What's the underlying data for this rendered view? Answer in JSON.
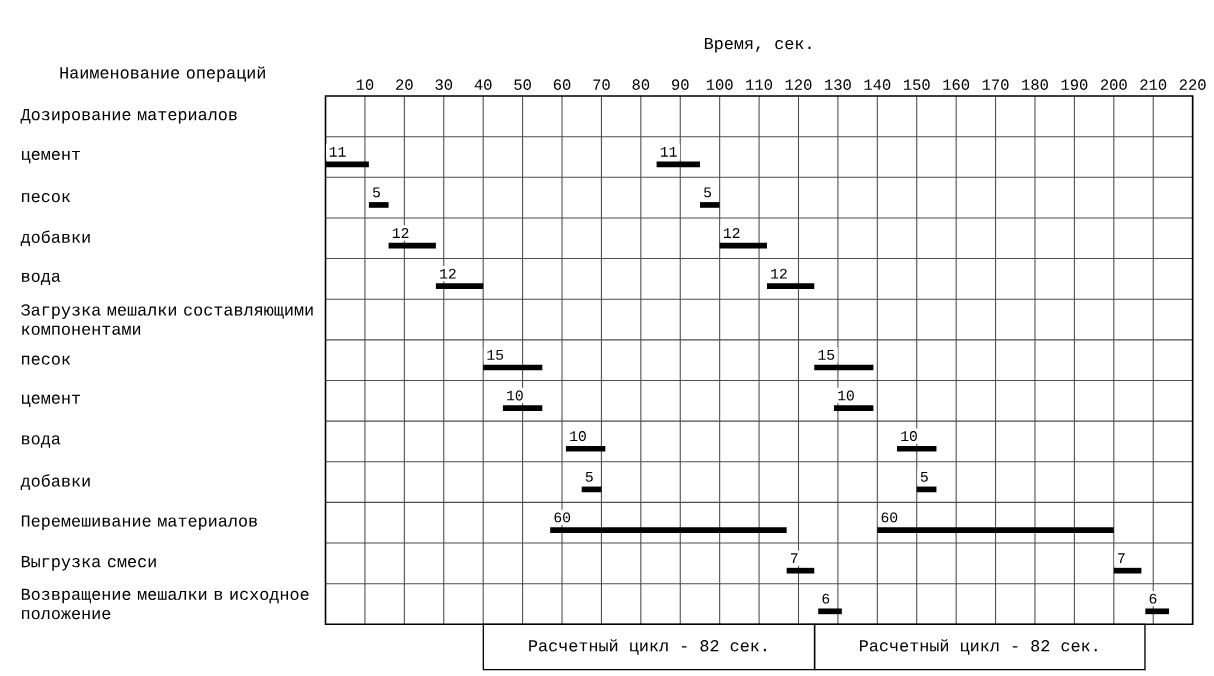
{
  "chart_data": {
    "type": "bar",
    "orientation": "horizontal",
    "xlabel": "Время, сек.",
    "ylabel": "Наименование операций",
    "categories": [
      "Дозирование материалов",
      "цемент",
      "песок",
      "добавки",
      "вода",
      "Загрузка мешалки составляющими компонентами",
      "песок",
      "цемент",
      "вода",
      "добавки",
      "Перемешивание материалов",
      "Выгрузка смеси",
      "Возвращение мешалки в исходное положение"
    ],
    "series": [
      {
        "color": "#000000",
        "values": [
          null,
          11,
          5,
          12,
          12,
          null,
          15,
          10,
          10,
          5,
          60,
          7,
          6
        ],
        "base": [
          null,
          0,
          11,
          16,
          28,
          null,
          40,
          45,
          61,
          65,
          57,
          117,
          125
        ]
      },
      {
        "color": "#000000",
        "values": [
          null,
          11,
          5,
          12,
          12,
          null,
          15,
          10,
          10,
          5,
          60,
          7,
          6
        ],
        "base": [
          null,
          84,
          95,
          100,
          112,
          null,
          124,
          129,
          145,
          150,
          140,
          200,
          208
        ]
      }
    ],
    "data_labels": true,
    "xlim": [
      0,
      220
    ],
    "xticks": [
      10,
      20,
      30,
      40,
      50,
      60,
      70,
      80,
      90,
      100,
      110,
      120,
      130,
      140,
      150,
      160,
      170,
      180,
      190,
      200,
      210,
      220
    ],
    "grid": true,
    "annotations": [
      "Расчетный цикл - 82 сек.",
      "Расчетный цикл - 82 сек."
    ]
  }
}
